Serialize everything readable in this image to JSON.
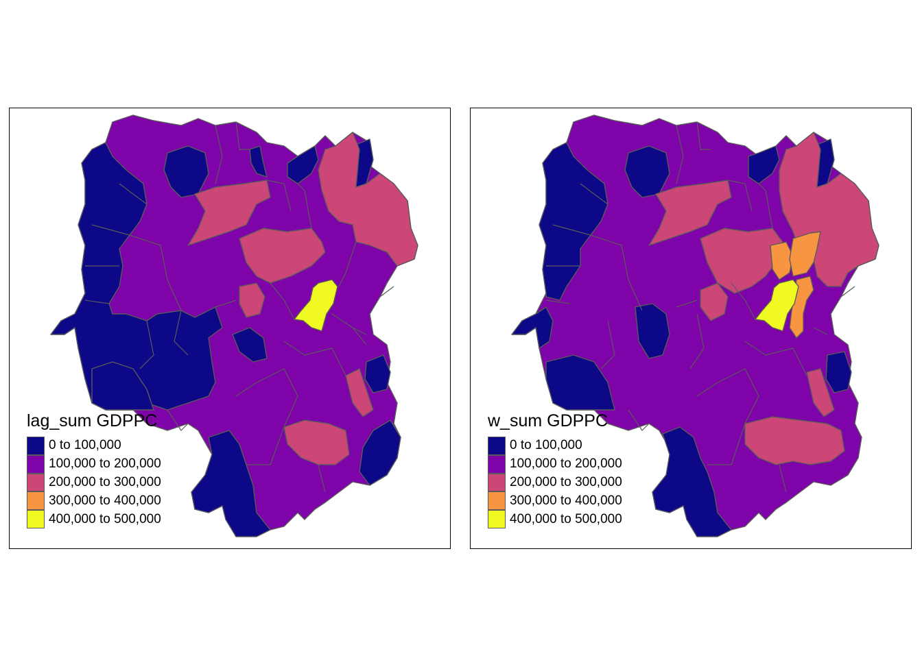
{
  "maps": [
    {
      "id": "left",
      "legend_title": "lag_sum GDPPC",
      "overlay_class": "400,000 to 500,000",
      "extra_classes": []
    },
    {
      "id": "right",
      "legend_title": "w_sum GDPPC",
      "overlay_class": "400,000 to 500,000",
      "extra_classes": [
        "300,000 to 400,000"
      ]
    }
  ],
  "legend_classes": [
    {
      "label": "0 to 100,000",
      "color": "#0d0887"
    },
    {
      "label": "100,000 to 200,000",
      "color": "#7e03a8"
    },
    {
      "label": "200,000 to 300,000",
      "color": "#cc4778"
    },
    {
      "label": "300,000 to 400,000",
      "color": "#f89540"
    },
    {
      "label": "400,000 to 500,000",
      "color": "#f0f921"
    }
  ],
  "palette": {
    "low": "#0d0887",
    "mid": "#7e03a8",
    "high": "#cc4778",
    "higher": "#f89540",
    "highest": "#f0f921",
    "border": "#5a5a5a"
  }
}
